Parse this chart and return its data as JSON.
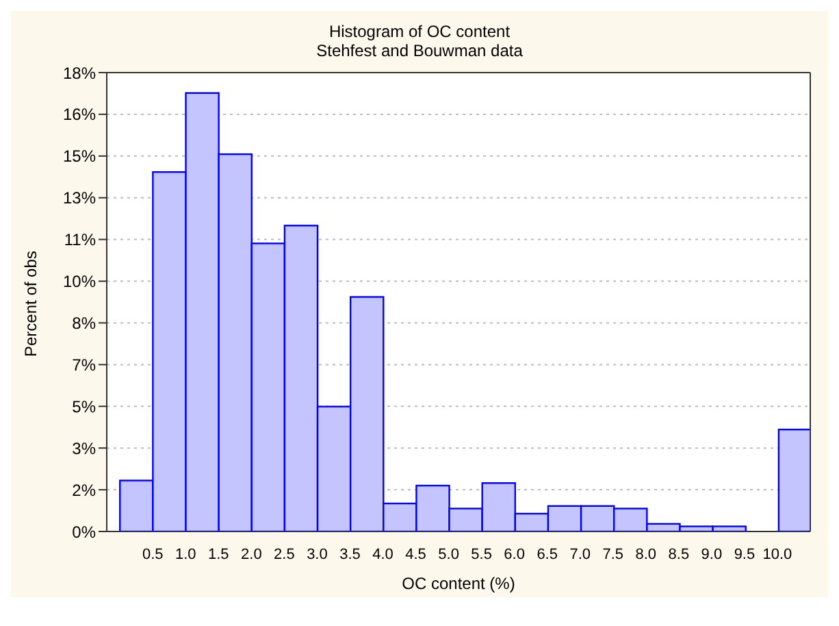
{
  "chart_data": {
    "type": "histogram",
    "title": "Histogram of OC content",
    "subtitle": "Stehfest and Bouwman data",
    "xlabel": "OC content (%)",
    "ylabel": "Percent of obs",
    "bins": [
      0,
      0.5,
      1.0,
      1.5,
      2.0,
      2.5,
      3.0,
      3.5,
      4.0,
      4.5,
      5.0,
      5.5,
      6.0,
      6.5,
      7.0,
      7.5,
      8.0,
      8.5,
      9.0,
      9.5,
      10.0,
      10.5
    ],
    "values": [
      2.0,
      14.1,
      17.2,
      14.8,
      11.3,
      12.0,
      4.9,
      9.2,
      1.1,
      1.8,
      0.9,
      1.9,
      0.7,
      1.0,
      1.0,
      0.9,
      0.3,
      0.2,
      0.2,
      0,
      4.0
    ],
    "color": "#c4c4ff",
    "xlim": [
      -0.2,
      10.5
    ],
    "xticks": [
      0.5,
      {
        "value": 1,
        "label": "1.0"
      },
      1.5,
      {
        "value": 2,
        "label": "2.0"
      },
      2.5,
      {
        "value": 3,
        "label": "3.0"
      },
      3.5,
      {
        "value": 4,
        "label": "4.0"
      },
      4.5,
      {
        "value": 5,
        "label": "5.0"
      },
      5.5,
      {
        "value": 6,
        "label": "6.0"
      },
      6.5,
      {
        "value": 7,
        "label": "7.0"
      },
      7.5,
      {
        "value": 8,
        "label": "8.0"
      },
      8.5,
      {
        "value": 9,
        "label": "9.0"
      },
      9.5,
      {
        "value": 10,
        "label": "10.0"
      }
    ],
    "ylim": [
      0,
      18
    ],
    "yticks": [
      {
        "value": 0,
        "label": "0%"
      },
      {
        "value": 1.636,
        "label": "2%"
      },
      {
        "value": 3.273,
        "label": "3%"
      },
      {
        "value": 4.909,
        "label": "5%"
      },
      {
        "value": 6.545,
        "label": "7%"
      },
      {
        "value": 8.182,
        "label": "8%"
      },
      {
        "value": 9.818,
        "label": "10%"
      },
      {
        "value": 11.455,
        "label": "11%"
      },
      {
        "value": 13.091,
        "label": "13%"
      },
      {
        "value": 14.727,
        "label": "15%"
      },
      {
        "value": 16.364,
        "label": "16%"
      },
      {
        "value": 18,
        "label": "18%"
      }
    ],
    "grid": "y"
  }
}
